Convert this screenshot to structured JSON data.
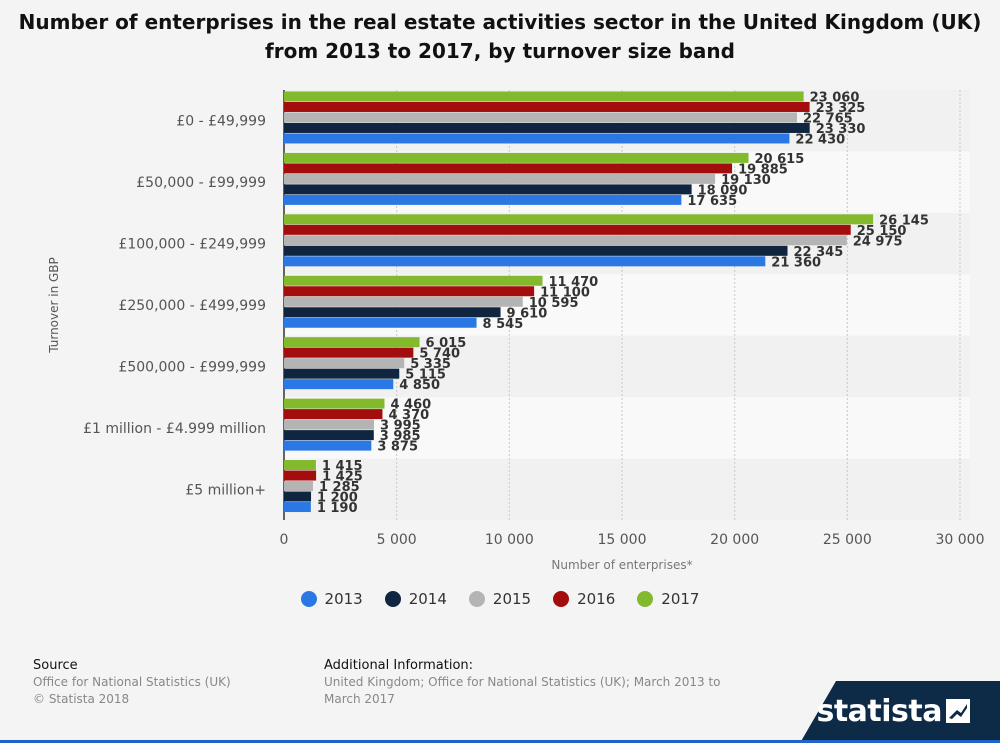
{
  "title": "Number of enterprises in the real estate activities sector in the United Kingdom (UK) from 2013 to 2017, by turnover size band",
  "colors": {
    "2013": "#2b78e4",
    "2014": "#10253f",
    "2015": "#b4b4b4",
    "2016": "#a30d0d",
    "2017": "#82b92d"
  },
  "chart_data": {
    "type": "bar",
    "orientation": "horizontal",
    "categories": [
      "£0 - £49,999",
      "£50,000 - £99,999",
      "£100,000 - £249,999",
      "£250,000 - £499,999",
      "£500,000 - £999,999",
      "£1 million - £4.999 million",
      "£5 million+"
    ],
    "series": [
      {
        "name": "2013",
        "values": [
          22430,
          17635,
          21360,
          8545,
          4850,
          3875,
          1190
        ],
        "labels": [
          "22 430",
          "17 635",
          "21 360",
          "8 545",
          "4 850",
          "3 875",
          "1 190"
        ]
      },
      {
        "name": "2014",
        "values": [
          23330,
          18090,
          22345,
          9610,
          5115,
          3985,
          1200
        ],
        "labels": [
          "23 330",
          "18 090",
          "22 345",
          "9 610",
          "5 115",
          "3 985",
          "1 200"
        ]
      },
      {
        "name": "2015",
        "values": [
          22765,
          19130,
          24975,
          10595,
          5335,
          3995,
          1285
        ],
        "labels": [
          "22 765",
          "19 130",
          "24 975",
          "10 595",
          "5 335",
          "3 995",
          "1 285"
        ]
      },
      {
        "name": "2016",
        "values": [
          23325,
          19885,
          25150,
          11100,
          5740,
          4370,
          1425
        ],
        "labels": [
          "23 325",
          "19 885",
          "25 150",
          "11 100",
          "5 740",
          "4 370",
          "1 425"
        ]
      },
      {
        "name": "2017",
        "values": [
          23060,
          20615,
          26145,
          11470,
          6015,
          4460,
          1415
        ],
        "labels": [
          "23 060",
          "20 615",
          "26 145",
          "11 470",
          "6 015",
          "4 460",
          "1 415"
        ]
      }
    ],
    "xlabel": "Number of enterprises*",
    "ylabel": "Turnover in GBP",
    "xlim": [
      0,
      30000
    ],
    "xticks": [
      0,
      5000,
      10000,
      15000,
      20000,
      25000,
      30000
    ],
    "xtick_labels": [
      "0",
      "5 000",
      "10 000",
      "15 000",
      "20 000",
      "25 000",
      "30 000"
    ],
    "grid": true,
    "legend_position": "bottom"
  },
  "legend": [
    {
      "label": "2013",
      "color": "#2b78e4"
    },
    {
      "label": "2014",
      "color": "#10253f"
    },
    {
      "label": "2015",
      "color": "#b4b4b4"
    },
    {
      "label": "2016",
      "color": "#a30d0d"
    },
    {
      "label": "2017",
      "color": "#82b92d"
    }
  ],
  "footer": {
    "source_heading": "Source",
    "source_line1": "Office for National Statistics (UK)",
    "source_line2": "© Statista 2018",
    "info_heading": "Additional Information:",
    "info_text": "United Kingdom; Office for National Statistics (UK); March 2013 to March 2017"
  },
  "brand": "statista"
}
